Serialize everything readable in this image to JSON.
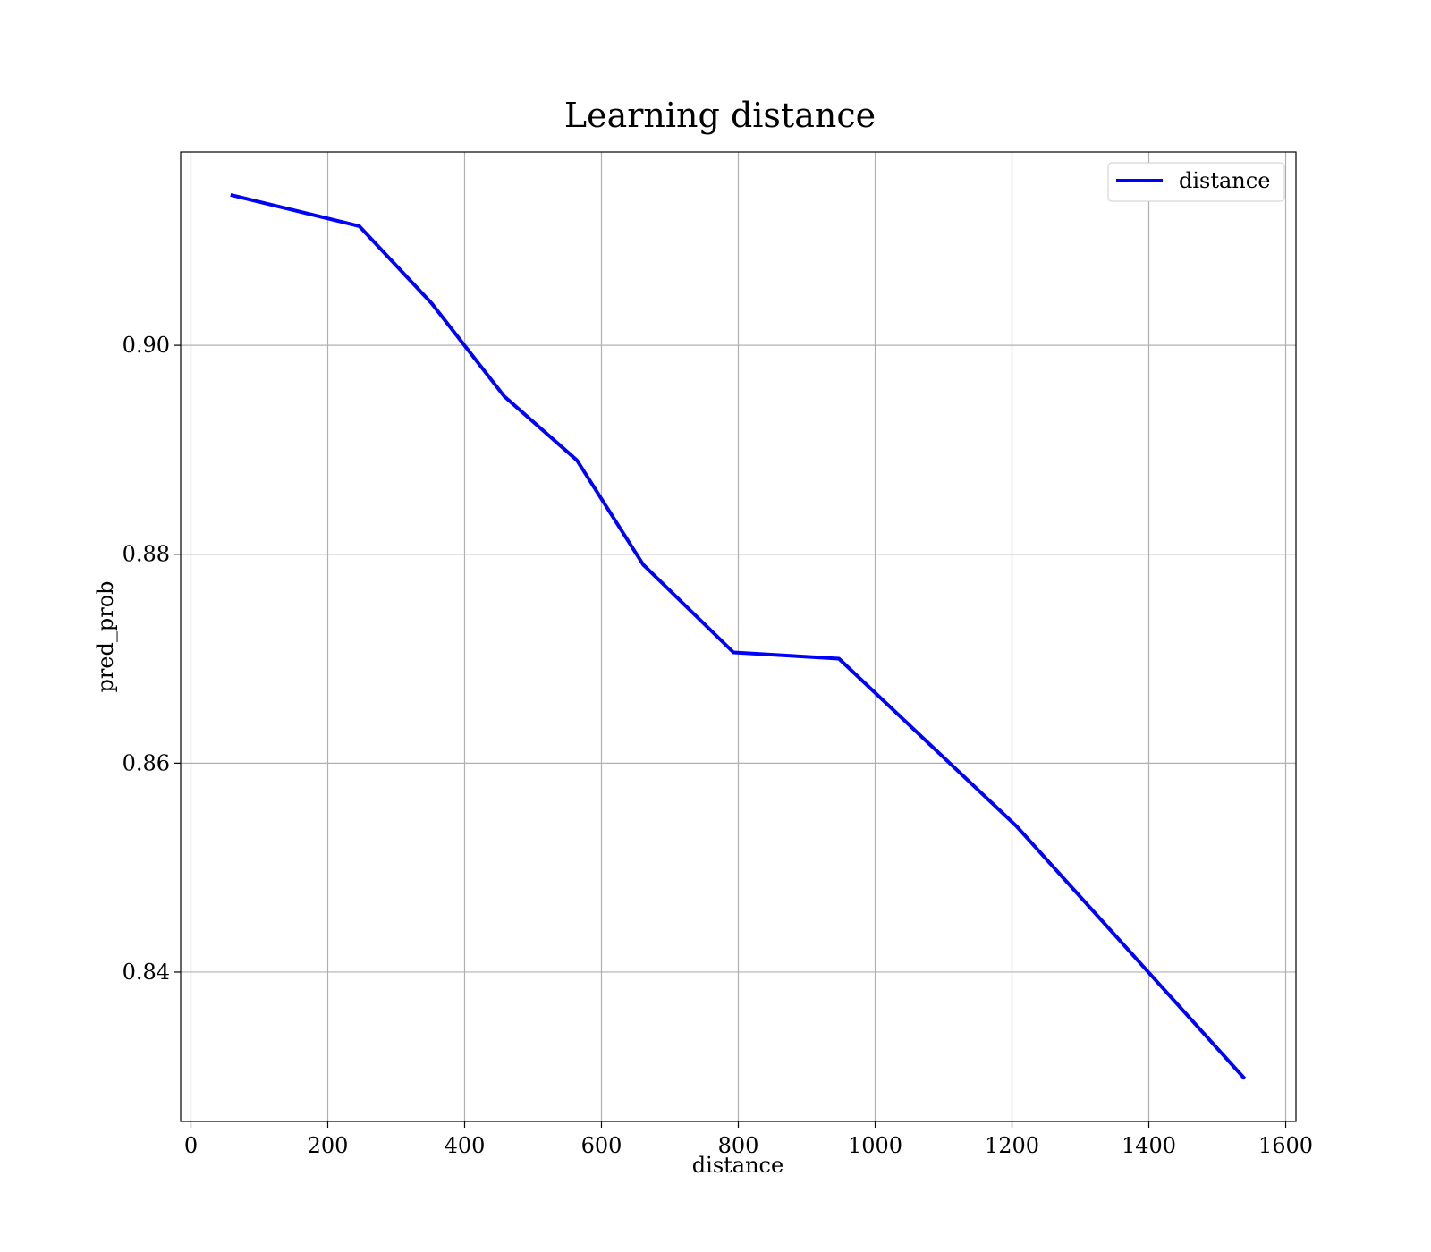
{
  "chart_data": {
    "type": "line",
    "title": "Learning distance",
    "xlabel": "distance",
    "ylabel": "pred_prob",
    "xlim": [
      -15,
      1615
    ],
    "ylim": [
      0.8257,
      0.9185
    ],
    "xticks": [
      0,
      200,
      400,
      600,
      800,
      1000,
      1200,
      1400,
      1600
    ],
    "xtick_labels": [
      "0",
      "200",
      "400",
      "600",
      "800",
      "1000",
      "1200",
      "1400",
      "1600"
    ],
    "yticks": [
      0.84,
      0.86,
      0.88,
      0.9
    ],
    "ytick_labels": [
      "0.84",
      "0.86",
      "0.88",
      "0.90"
    ],
    "grid": true,
    "legend_position": "top-right",
    "series": [
      {
        "name": "distance",
        "color": "#0000ff",
        "x": [
          58,
          246,
          352,
          458,
          564,
          661,
          793,
          947,
          1206,
          1540
        ],
        "y": [
          0.9144,
          0.9114,
          0.904,
          0.8951,
          0.889,
          0.879,
          0.8706,
          0.87,
          0.854,
          0.8298
        ]
      }
    ]
  }
}
